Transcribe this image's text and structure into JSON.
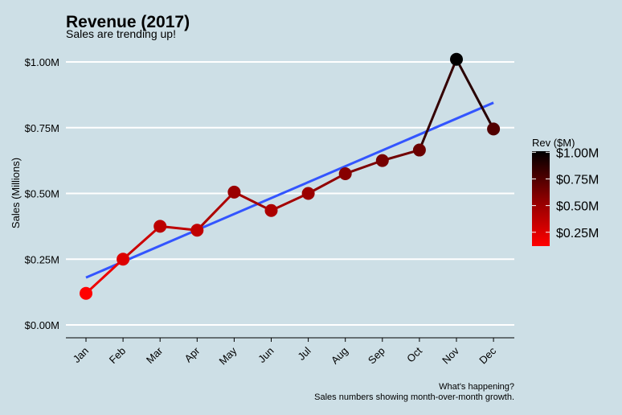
{
  "chart_data": {
    "type": "line",
    "title": "Revenue (2017)",
    "subtitle": "Sales are trending up!",
    "xlabel": "",
    "ylabel": "Sales (Millions)",
    "categories": [
      "Jan",
      "Feb",
      "Mar",
      "Apr",
      "May",
      "Jun",
      "Jul",
      "Aug",
      "Sep",
      "Oct",
      "Nov",
      "Dec"
    ],
    "values": [
      0.12,
      0.25,
      0.375,
      0.36,
      0.505,
      0.435,
      0.5,
      0.575,
      0.625,
      0.665,
      1.01,
      0.745
    ],
    "ylim": [
      0,
      1.0
    ],
    "yticks": [
      0,
      0.25,
      0.5,
      0.75,
      1.0
    ],
    "ytick_labels": [
      "$0.00M",
      "$0.25M",
      "$0.50M",
      "$0.75M",
      "$1.00M"
    ],
    "trend_line": {
      "start": 0.18,
      "end": 0.845,
      "color": "#3355ff"
    },
    "grid": "horizontal",
    "legend": {
      "title": "Rev ($M)",
      "placement": "right",
      "labels": [
        "$1.00M",
        "$0.75M",
        "$0.50M",
        "$0.25M"
      ],
      "values": [
        1.0,
        0.75,
        0.5,
        0.25
      ],
      "range": [
        0.12,
        1.01
      ]
    },
    "color_scale": {
      "low": "#ff0000",
      "high": "#000000"
    },
    "caption_line1": "What's happening?",
    "caption_line2": "Sales numbers showing month-over-month growth."
  }
}
